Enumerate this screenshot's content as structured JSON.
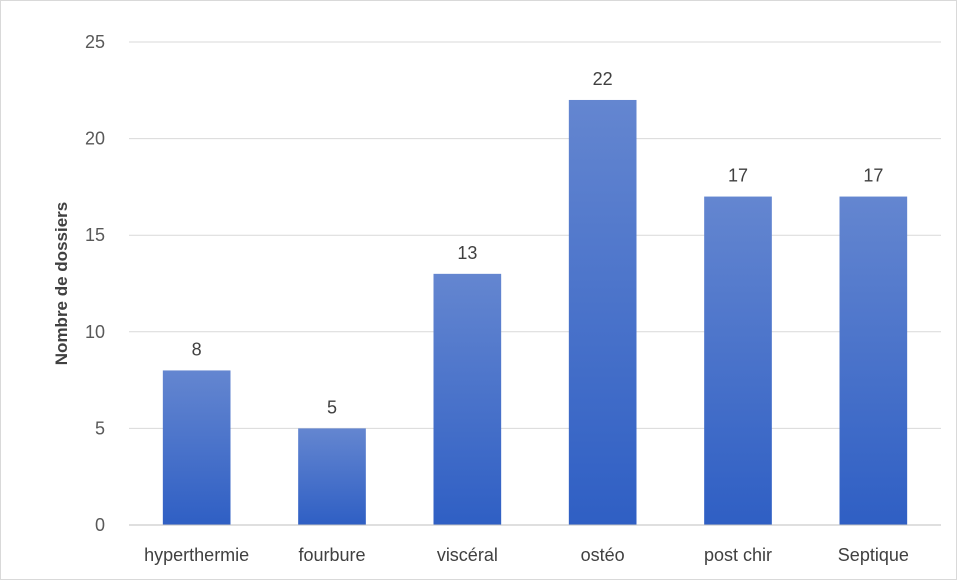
{
  "chart_data": {
    "type": "bar",
    "title": "",
    "xlabel": "",
    "ylabel": "Nombre de dossiers",
    "ylim": [
      0,
      25
    ],
    "yticks": [
      0,
      5,
      10,
      15,
      20,
      25
    ],
    "grid": true,
    "categories": [
      "hyperthermie",
      "fourbure",
      "viscéral",
      "ostéo",
      "post chir",
      "Septique"
    ],
    "values": [
      8,
      5,
      13,
      22,
      17,
      17
    ],
    "data_labels": [
      "8",
      "5",
      "13",
      "22",
      "17",
      "17"
    ],
    "colors": {
      "bar_top": "#6486d0",
      "bar_bottom": "#2f5fc4",
      "grid": "#d9d9d9",
      "axis": "#bfbfbf"
    }
  }
}
